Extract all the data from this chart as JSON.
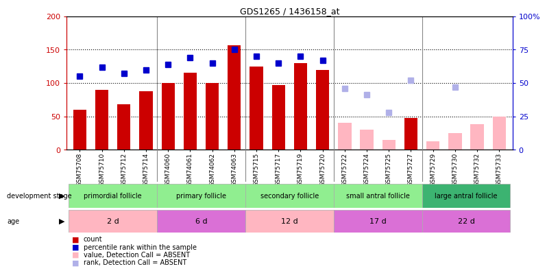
{
  "title": "GDS1265 / 1436158_at",
  "samples": [
    "GSM75708",
    "GSM75710",
    "GSM75712",
    "GSM75714",
    "GSM74060",
    "GSM74061",
    "GSM74062",
    "GSM74063",
    "GSM75715",
    "GSM75717",
    "GSM75719",
    "GSM75720",
    "GSM75722",
    "GSM75724",
    "GSM75725",
    "GSM75727",
    "GSM75729",
    "GSM75730",
    "GSM75732",
    "GSM75733"
  ],
  "count_values": [
    60,
    90,
    68,
    88,
    100,
    115,
    100,
    157,
    125,
    97,
    130,
    120,
    null,
    null,
    null,
    47,
    null,
    null,
    null,
    null
  ],
  "count_absent": [
    null,
    null,
    null,
    null,
    null,
    null,
    null,
    null,
    null,
    null,
    null,
    null,
    40,
    30,
    15,
    null,
    13,
    25,
    38,
    50
  ],
  "percentile_values": [
    55,
    62,
    57,
    60,
    64,
    69,
    65,
    75,
    70,
    65,
    70,
    67,
    null,
    null,
    null,
    null,
    null,
    null,
    null,
    null
  ],
  "percentile_absent": [
    null,
    null,
    null,
    null,
    null,
    null,
    null,
    null,
    null,
    null,
    null,
    null,
    46,
    41,
    28,
    52,
    null,
    47,
    null,
    null
  ],
  "groups": [
    {
      "label": "primordial follicle",
      "start": 0,
      "end": 3,
      "color": "#90ee90"
    },
    {
      "label": "primary follicle",
      "start": 4,
      "end": 7,
      "color": "#90ee90"
    },
    {
      "label": "secondary follicle",
      "start": 8,
      "end": 11,
      "color": "#90ee90"
    },
    {
      "label": "small antral follicle",
      "start": 12,
      "end": 15,
      "color": "#90ee90"
    },
    {
      "label": "large antral follicle",
      "start": 16,
      "end": 19,
      "color": "#3cb371"
    }
  ],
  "ages": [
    {
      "label": "2 d",
      "start": 0,
      "end": 3,
      "color": "#ffb6c1"
    },
    {
      "label": "6 d",
      "start": 4,
      "end": 7,
      "color": "#da70d6"
    },
    {
      "label": "12 d",
      "start": 8,
      "end": 11,
      "color": "#ffb6c1"
    },
    {
      "label": "17 d",
      "start": 12,
      "end": 15,
      "color": "#da70d6"
    },
    {
      "label": "22 d",
      "start": 16,
      "end": 19,
      "color": "#da70d6"
    }
  ],
  "ylim_left": [
    0,
    200
  ],
  "ylim_right": [
    0,
    100
  ],
  "yticks_left": [
    0,
    50,
    100,
    150,
    200
  ],
  "yticks_right": [
    0,
    25,
    50,
    75,
    100
  ],
  "ytick_labels_right": [
    "0",
    "25",
    "50",
    "75",
    "100%"
  ],
  "color_count": "#cc0000",
  "color_absent_count": "#ffb6c1",
  "color_percentile": "#0000cc",
  "color_absent_percentile": "#b0b0e8",
  "bar_width": 0.6,
  "bg_xtick": "#d3d3d3"
}
